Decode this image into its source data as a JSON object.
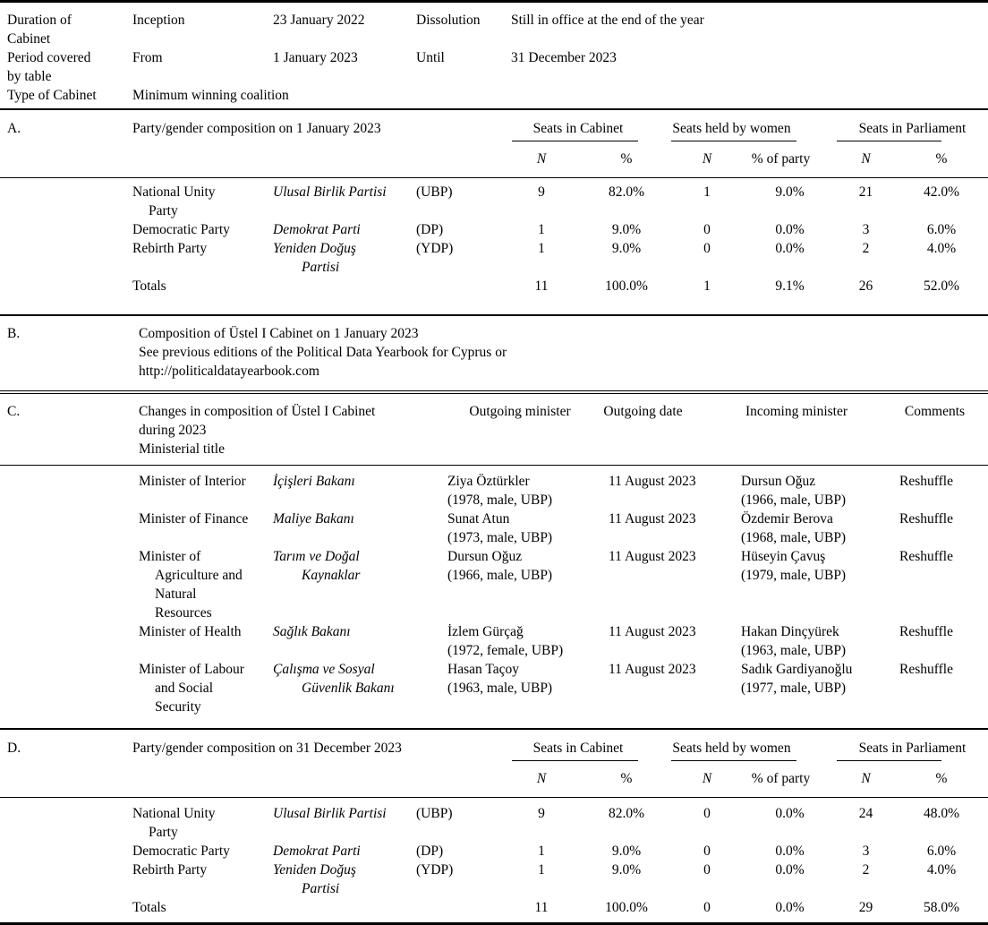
{
  "meta": {
    "duration_label": "Duration of\nCabinet",
    "inception_label": "Inception",
    "inception_value": "23 January 2022",
    "dissolution_label": "Dissolution",
    "dissolution_value": "Still in office at the end of the year",
    "period_label": "Period covered\nby table",
    "from_label": "From",
    "from_value": "1 January 2023",
    "until_label": "Until",
    "until_value": "31 December 2023",
    "type_label": "Type of Cabinet",
    "type_value": "Minimum winning coalition"
  },
  "section_a": {
    "key": "A.",
    "title": "Party/gender composition on 1 January 2023",
    "group_headers": [
      "Seats in Cabinet",
      "Seats held by women",
      "Seats in Parliament"
    ],
    "sub_headers": [
      "N",
      "%",
      "N",
      "% of party",
      "N",
      "%"
    ],
    "rows": [
      {
        "name_en": "National Unity\nParty",
        "name_tr": "Ulusal Birlik Partisi",
        "abbr": "(UBP)",
        "cab_n": "9",
        "cab_pct": "82.0%",
        "wom_n": "1",
        "wom_pct": "9.0%",
        "parl_n": "21",
        "parl_pct": "42.0%"
      },
      {
        "name_en": "Democratic Party",
        "name_tr": "Demokrat Parti",
        "abbr": "(DP)",
        "cab_n": "1",
        "cab_pct": "9.0%",
        "wom_n": "0",
        "wom_pct": "0.0%",
        "parl_n": "3",
        "parl_pct": "6.0%"
      },
      {
        "name_en": "Rebirth Party",
        "name_tr": "Yeniden Doğuş\nPartisi",
        "abbr": "(YDP)",
        "cab_n": "1",
        "cab_pct": "9.0%",
        "wom_n": "0",
        "wom_pct": "0.0%",
        "parl_n": "2",
        "parl_pct": "4.0%"
      }
    ],
    "totals": {
      "label": "Totals",
      "cab_n": "11",
      "cab_pct": "100.0%",
      "wom_n": "1",
      "wom_pct": "9.1%",
      "parl_n": "26",
      "parl_pct": "52.0%"
    }
  },
  "section_b": {
    "key": "B.",
    "line1": "Composition of Üstel I Cabinet on 1 January 2023",
    "line2": "See previous editions of the Political Data Yearbook for Cyprus or http://politicaldatayearbook.com"
  },
  "section_c": {
    "key": "C.",
    "title": "Changes in composition of Üstel I Cabinet\nduring 2023\nMinisterial title",
    "col_headers": [
      "Outgoing minister",
      "Outgoing date",
      "Incoming minister",
      "Comments"
    ],
    "rows": [
      {
        "title_en": "Minister of Interior",
        "title_tr": "İçişleri Bakanı",
        "out_name": "Ziya Öztürkler",
        "out_detail": "(1978, male, UBP)",
        "out_date": "11 August 2023",
        "in_name": "Dursun Oğuz",
        "in_detail": "(1966, male, UBP)",
        "comment": "Reshuffle"
      },
      {
        "title_en": "Minister of Finance",
        "title_tr": "Maliye Bakanı",
        "out_name": "Sunat Atun",
        "out_detail": "(1973, male, UBP)",
        "out_date": "11 August 2023",
        "in_name": "Özdemir Berova",
        "in_detail": "(1968, male, UBP)",
        "comment": "Reshuffle"
      },
      {
        "title_en": "Minister of\nAgriculture and\nNatural\nResources",
        "title_tr": "Tarım ve Doğal\nKaynaklar",
        "out_name": "Dursun Oğuz",
        "out_detail": "(1966, male, UBP)",
        "out_date": "11 August 2023",
        "in_name": "Hüseyin Çavuş",
        "in_detail": "(1979, male, UBP)",
        "comment": "Reshuffle"
      },
      {
        "title_en": "Minister of Health",
        "title_tr": "Sağlık Bakanı",
        "out_name": "İzlem Gürçağ",
        "out_detail": "(1972, female, UBP)",
        "out_date": "11 August 2023",
        "in_name": "Hakan Dinçyürek",
        "in_detail": "(1963, male, UBP)",
        "comment": "Reshuffle"
      },
      {
        "title_en": "Minister of Labour\nand Social\nSecurity",
        "title_tr": "Çalışma ve Sosyal\nGüvenlik Bakanı",
        "out_name": "Hasan Taçoy",
        "out_detail": "(1963, male, UBP)",
        "out_date": "11 August 2023",
        "in_name": "Sadık Gardiyanoğlu",
        "in_detail": "(1977, male, UBP)",
        "comment": "Reshuffle"
      }
    ]
  },
  "section_d": {
    "key": "D.",
    "title": "Party/gender composition on 31 December 2023",
    "group_headers": [
      "Seats in Cabinet",
      "Seats held by women",
      "Seats in Parliament"
    ],
    "sub_headers": [
      "N",
      "%",
      "N",
      "% of party",
      "N",
      "%"
    ],
    "rows": [
      {
        "name_en": "National Unity\nParty",
        "name_tr": "Ulusal Birlik Partisi",
        "abbr": "(UBP)",
        "cab_n": "9",
        "cab_pct": "82.0%",
        "wom_n": "0",
        "wom_pct": "0.0%",
        "parl_n": "24",
        "parl_pct": "48.0%"
      },
      {
        "name_en": "Democratic Party",
        "name_tr": "Demokrat Parti",
        "abbr": "(DP)",
        "cab_n": "1",
        "cab_pct": "9.0%",
        "wom_n": "0",
        "wom_pct": "0.0%",
        "parl_n": "3",
        "parl_pct": "6.0%"
      },
      {
        "name_en": "Rebirth Party",
        "name_tr": "Yeniden Doğuş\nPartisi",
        "abbr": "(YDP)",
        "cab_n": "1",
        "cab_pct": "9.0%",
        "wom_n": "0",
        "wom_pct": "0.0%",
        "parl_n": "2",
        "parl_pct": "4.0%"
      }
    ],
    "totals": {
      "label": "Totals",
      "cab_n": "11",
      "cab_pct": "100.0%",
      "wom_n": "0",
      "wom_pct": "0.0%",
      "parl_n": "29",
      "parl_pct": "58.0%"
    }
  }
}
